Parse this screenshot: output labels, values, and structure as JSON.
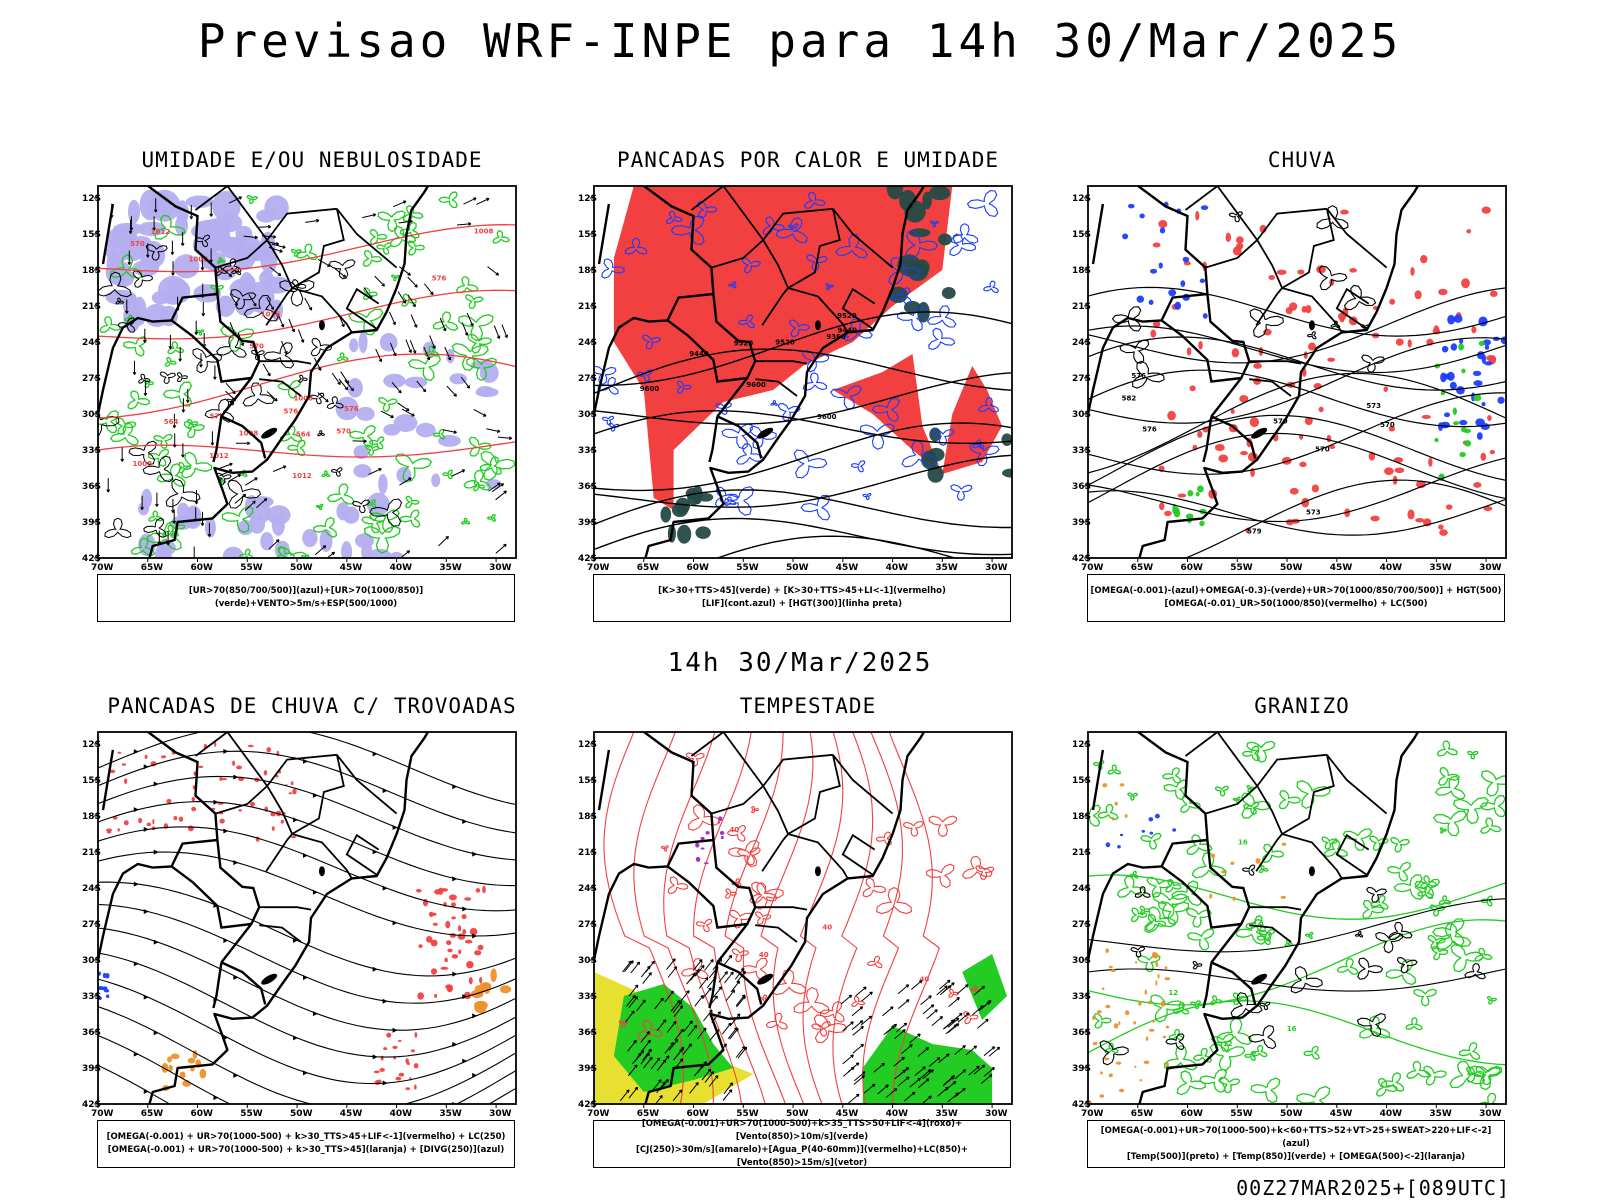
{
  "page": {
    "title": "Previsao WRF-INPE  para 14h 30/Mar/2025",
    "mid_title": "14h 30/Mar/2025",
    "footer": "00Z27MAR2025+[089UTC]"
  },
  "axes": {
    "lon_labels": [
      "70W",
      "65W",
      "60W",
      "55W",
      "50W",
      "45W",
      "40W",
      "35W",
      "30W"
    ],
    "lat_labels": [
      "12S",
      "15S",
      "18S",
      "21S",
      "24S",
      "27S",
      "30S",
      "33S",
      "36S",
      "39S",
      "42S"
    ]
  },
  "colors": {
    "umidade_blue": "#b4aef0",
    "green": "#22cc22",
    "red": "#f24040",
    "blue": "#1a3cff",
    "dark_teal": "#244a44",
    "yellow": "#e8e030",
    "orange": "#f0902a",
    "purple": "#a020d0"
  },
  "panels": [
    {
      "title": "UMIDADE E/OU NEBULOSIDADE",
      "caption": [
        "[UR>70(850/700/500)](azul)+[UR>70(1000/850)](verde)+VENTO>5m/s+ESP(500/1000)"
      ],
      "contour_labels": [
        "1008",
        "1008",
        "1008",
        "1008",
        "1008",
        "1012",
        "1012",
        "1012",
        "1016",
        "576",
        "576",
        "570",
        "570",
        "570",
        "564",
        "576",
        "576",
        "564"
      ]
    },
    {
      "title": "PANCADAS POR CALOR E UMIDADE",
      "caption": [
        "[K>30+TTS>45](verde)  +  [K>30+TTS>45+LI<-1](vermelho)",
        "[LIF](cont.azul)  +  [HGT(300)](linha preta)"
      ],
      "contour_labels": [
        "9600",
        "9520",
        "9600",
        "9600",
        "9520",
        "9520",
        "9440",
        "9360",
        "9440"
      ]
    },
    {
      "title": "CHUVA",
      "caption": [
        "[OMEGA(-0.001)-(azul)+OMEGA(-0.3)-(verde)+UR>70(1000/850/700/500)]  +  HGT(500)",
        "[OMEGA(-0.01)_UR>50(1000/850)(vermelho)  +  LC(500)"
      ],
      "contour_labels": [
        "582",
        "579",
        "579",
        "576",
        "573",
        "573",
        "570",
        "570",
        "576"
      ]
    },
    {
      "title": "PANCADAS DE CHUVA C/ TROVOADAS",
      "caption": [
        "[OMEGA(-0.001)  +  UR>70(1000-500)  +  k>30_TTS>45+LIF<-1](vermelho)  +  LC(250)",
        "[OMEGA(-0.001)  +  UR>70(1000-500)  +  k>30_TTS>45](laranja)  +  [DIVG(250)](azul)"
      ],
      "contour_labels": []
    },
    {
      "title": "TEMPESTADE",
      "caption": [
        "[OMEGA(-0.001)+UR>70(1000-500)+k>35_TTS>50+LIF<-4](roxo)+[Vento(850)>10m/s](verde)",
        "[CJ(250)>30m/s](amarelo)+[Agua_P(40-60mm)](vermelho)+LC(850)+[Vento(850)>15m/s](vetor)"
      ],
      "contour_labels": [
        "40",
        "40",
        "40",
        "40"
      ]
    },
    {
      "title": "GRANIZO",
      "caption": [
        "[OMEGA(-0.001)+UR>70(1000-500)+k<60+TTS>52+VT>25+SWEAT>220+LIF<-2](azul)",
        "[Temp(500)](preto)  +  [Temp(850)](verde)  +  [OMEGA(500)<-2](laranja)"
      ],
      "contour_labels": [
        "12",
        "12",
        "16",
        "16"
      ]
    }
  ]
}
